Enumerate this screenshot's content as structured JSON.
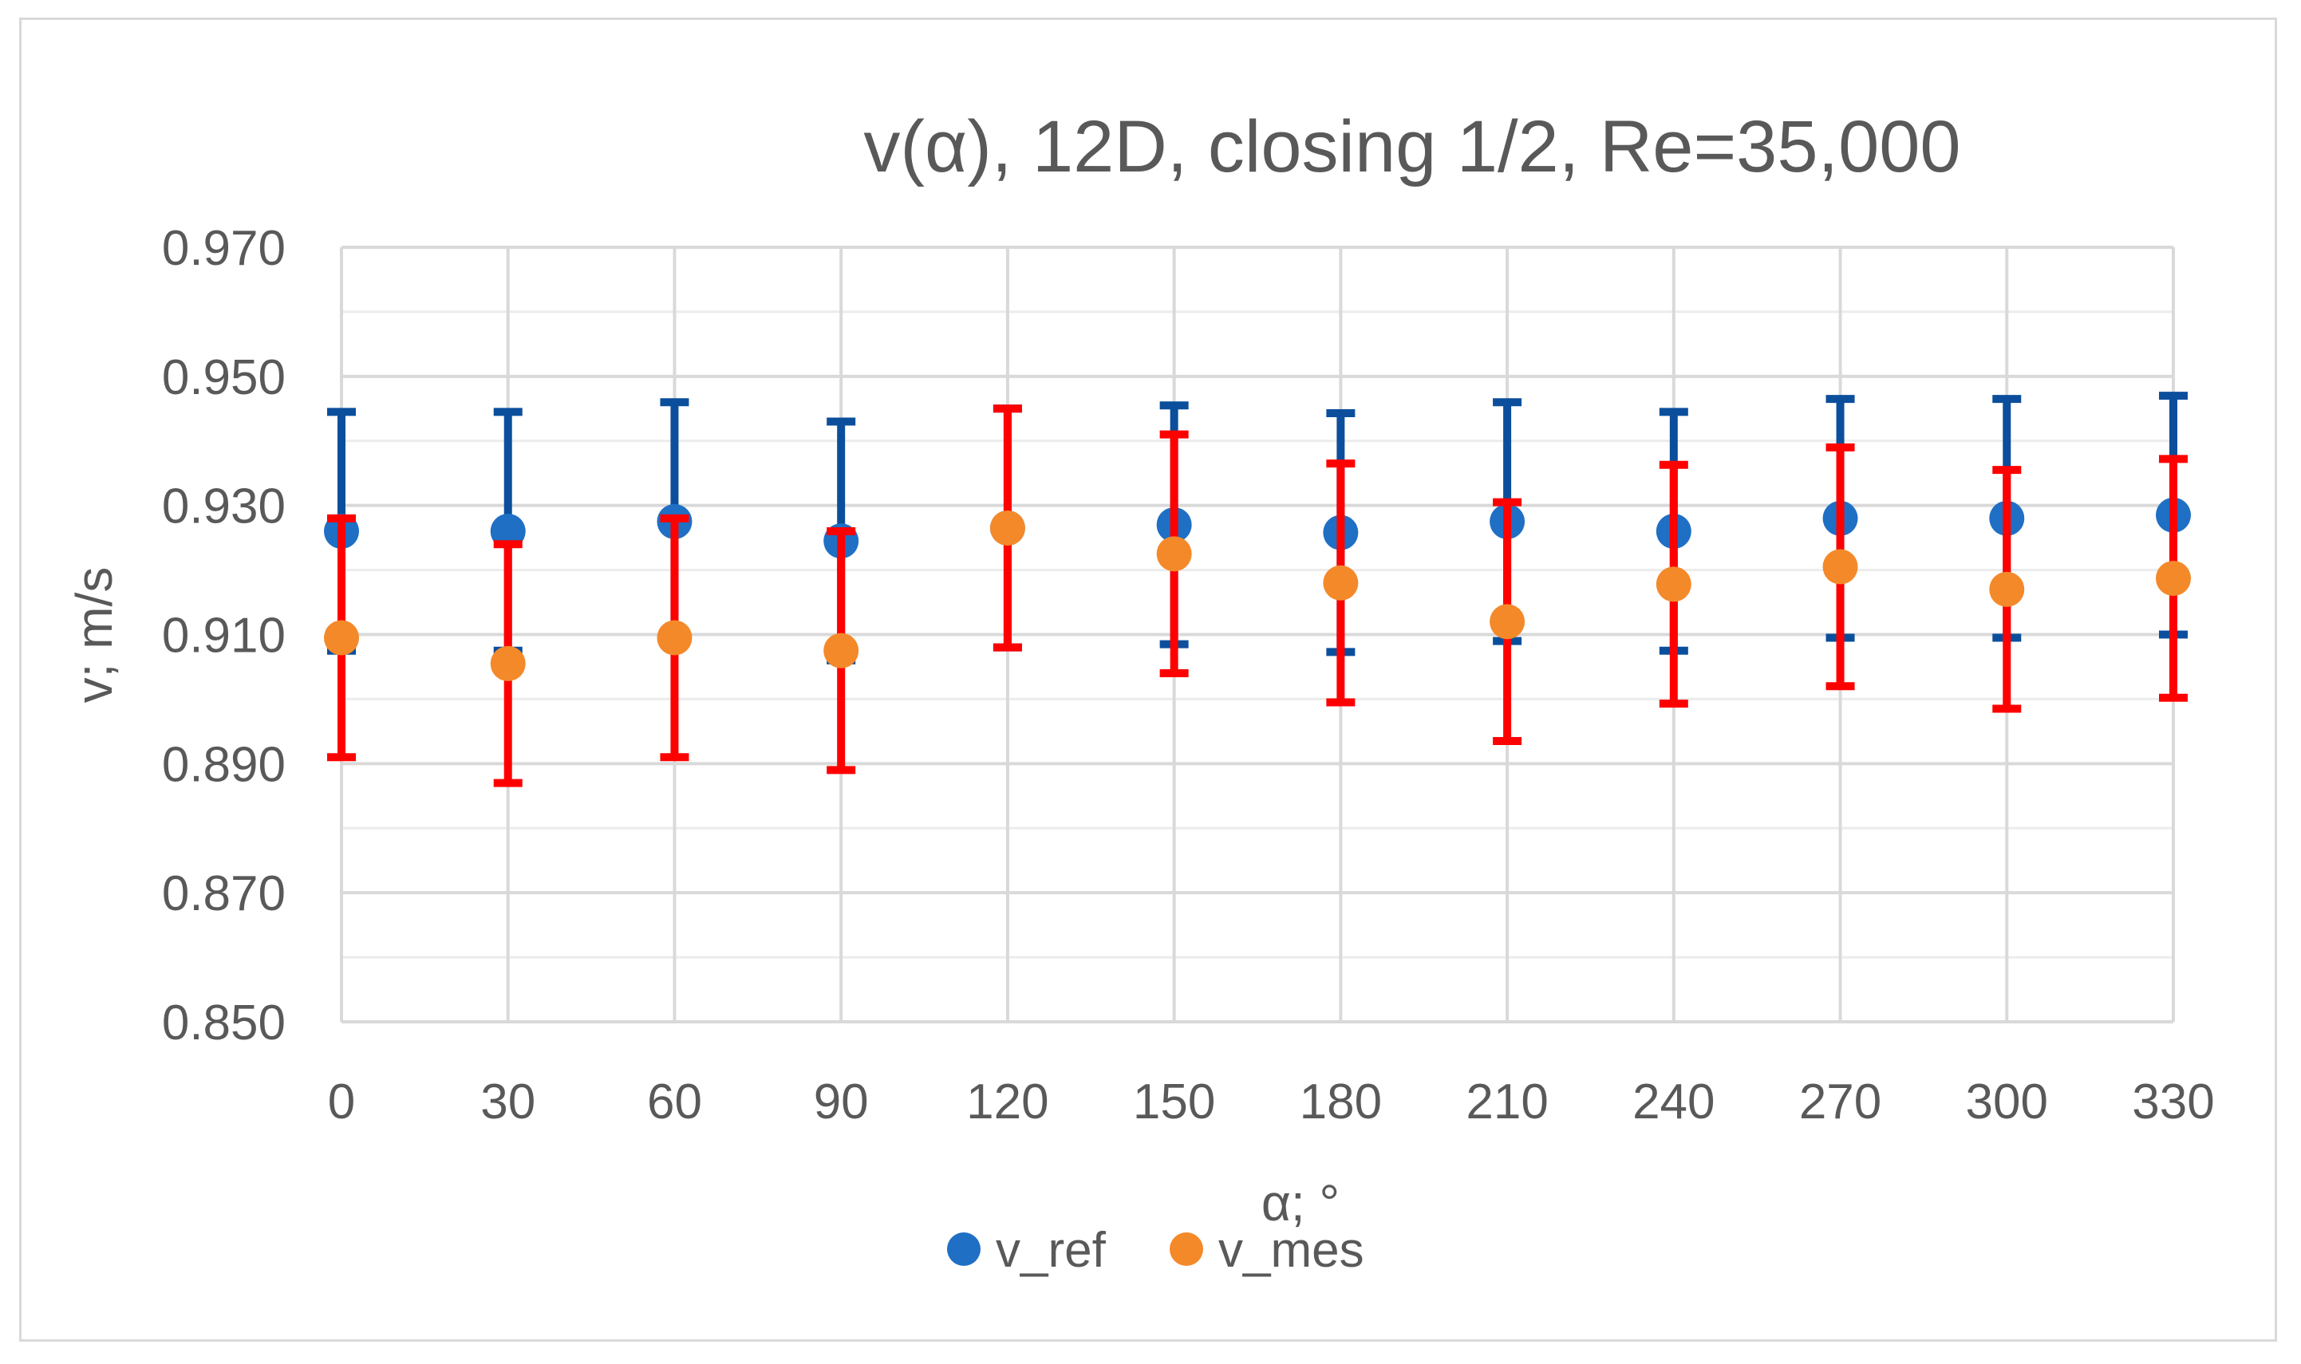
{
  "chart_data": {
    "type": "scatter",
    "title": "v(α), 12D, closing 1/2, Re=35,000",
    "xlabel": "α; °",
    "ylabel": "v; m/s",
    "x": [
      0,
      30,
      60,
      90,
      120,
      150,
      180,
      210,
      240,
      270,
      300,
      330
    ],
    "x_tick_labels": [
      "0",
      "30",
      "60",
      "90",
      "120",
      "150",
      "180",
      "210",
      "240",
      "270",
      "300",
      "330"
    ],
    "y_tick_labels": [
      "0.970",
      "0.950",
      "0.930",
      "0.910",
      "0.890",
      "0.870",
      "0.850"
    ],
    "y_tick_values": [
      0.97,
      0.95,
      0.93,
      0.91,
      0.89,
      0.87,
      0.85
    ],
    "ylim": [
      0.85,
      0.97
    ],
    "grid": true,
    "legend_position": "bottom",
    "series": [
      {
        "name": "v_ref",
        "color": "#1f6fc4",
        "error_color": "#0b4f9c",
        "values": [
          0.926,
          0.926,
          0.9275,
          0.9245,
          0.9265,
          0.927,
          0.9258,
          0.9275,
          0.926,
          0.928,
          0.928,
          0.9285
        ],
        "errors": [
          0.0185,
          0.0185,
          0.0185,
          0.0185,
          0.0185,
          0.0185,
          0.0185,
          0.0185,
          0.0185,
          0.0185,
          0.0185,
          0.0185
        ]
      },
      {
        "name": "v_mes",
        "color": "#f4892a",
        "error_color": "#ff0000",
        "values": [
          0.9095,
          0.9055,
          0.9095,
          0.9075,
          0.9265,
          0.9225,
          0.918,
          0.912,
          0.9178,
          0.9205,
          0.917,
          0.9187
        ],
        "errors": [
          0.0185,
          0.0185,
          0.0185,
          0.0185,
          0.0185,
          0.0185,
          0.0185,
          0.0185,
          0.0185,
          0.0185,
          0.0185,
          0.0185
        ]
      }
    ]
  }
}
